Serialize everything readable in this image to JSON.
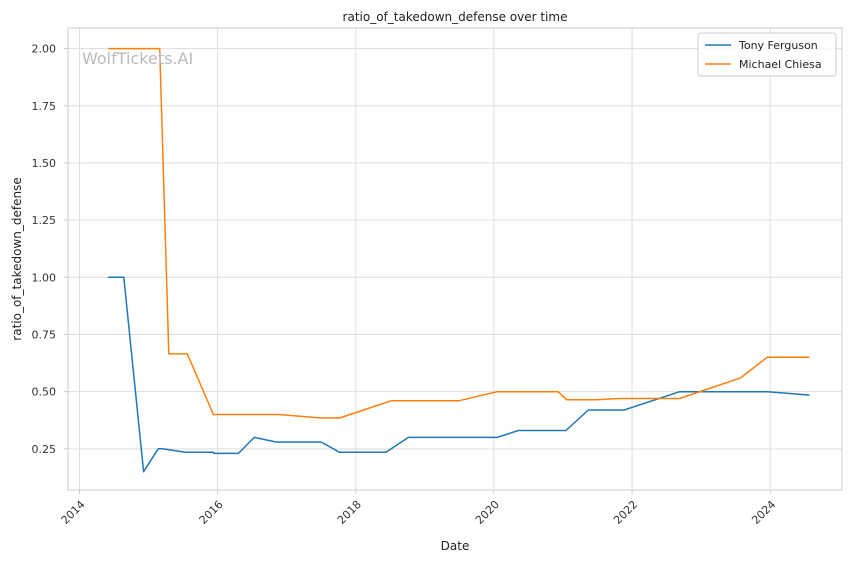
{
  "chart_data": {
    "type": "line",
    "title": "ratio_of_takedown_defense over time",
    "xlabel": "Date",
    "ylabel": "ratio_of_takedown_defense",
    "watermark": "WolfTickets.AI",
    "xlim": [
      "2013-11-01",
      "2025-01-15"
    ],
    "ylim": [
      0.07,
      2.09
    ],
    "x_ticks": [
      "2014-01-01",
      "2016-01-01",
      "2018-01-01",
      "2020-01-01",
      "2022-01-01",
      "2024-01-01"
    ],
    "x_tick_labels": [
      "2014",
      "2016",
      "2018",
      "2020",
      "2022",
      "2024"
    ],
    "y_ticks": [
      0.25,
      0.5,
      0.75,
      1.0,
      1.25,
      1.5,
      1.75,
      2.0
    ],
    "y_tick_labels": [
      "0.25",
      "0.50",
      "0.75",
      "1.00",
      "1.25",
      "1.50",
      "1.75",
      "2.00"
    ],
    "grid": true,
    "legend_position": "top-right",
    "series": [
      {
        "name": "Tony Ferguson",
        "color": "#1f77b4",
        "points": [
          [
            "2014-06-01",
            1.0
          ],
          [
            "2014-08-23",
            1.0
          ],
          [
            "2014-12-06",
            0.15
          ],
          [
            "2015-02-21",
            0.25
          ],
          [
            "2015-03-15",
            0.25
          ],
          [
            "2015-07-15",
            0.235
          ],
          [
            "2015-12-10",
            0.235
          ],
          [
            "2015-12-12",
            0.23
          ],
          [
            "2016-04-20",
            0.23
          ],
          [
            "2016-07-13",
            0.3
          ],
          [
            "2016-11-05",
            0.28
          ],
          [
            "2017-07-01",
            0.28
          ],
          [
            "2017-10-07",
            0.235
          ],
          [
            "2018-06-09",
            0.235
          ],
          [
            "2018-10-06",
            0.3
          ],
          [
            "2019-06-08",
            0.3
          ],
          [
            "2020-01-18",
            0.3
          ],
          [
            "2020-05-09",
            0.33
          ],
          [
            "2021-01-16",
            0.33
          ],
          [
            "2021-05-15",
            0.42
          ],
          [
            "2021-11-20",
            0.42
          ],
          [
            "2022-09-10",
            0.5
          ],
          [
            "2023-01-22",
            0.5
          ],
          [
            "2023-12-20",
            0.5
          ],
          [
            "2024-07-27",
            0.485
          ]
        ]
      },
      {
        "name": "Michael Chiesa",
        "color": "#ff7f0e",
        "points": [
          [
            "2014-06-01",
            2.0
          ],
          [
            "2014-08-23",
            2.0
          ],
          [
            "2015-03-01",
            2.0
          ],
          [
            "2015-04-18",
            0.665
          ],
          [
            "2015-07-25",
            0.665
          ],
          [
            "2015-12-10",
            0.4
          ],
          [
            "2016-11-19",
            0.4
          ],
          [
            "2017-07-01",
            0.385
          ],
          [
            "2017-10-07",
            0.385
          ],
          [
            "2018-07-06",
            0.46
          ],
          [
            "2019-06-29",
            0.46
          ],
          [
            "2020-01-18",
            0.5
          ],
          [
            "2020-12-05",
            0.5
          ],
          [
            "2021-01-20",
            0.465
          ],
          [
            "2021-06-26",
            0.465
          ],
          [
            "2021-10-23",
            0.47
          ],
          [
            "2022-09-10",
            0.47
          ],
          [
            "2023-07-29",
            0.56
          ],
          [
            "2023-12-16",
            0.65
          ],
          [
            "2024-07-27",
            0.65
          ]
        ]
      }
    ]
  }
}
